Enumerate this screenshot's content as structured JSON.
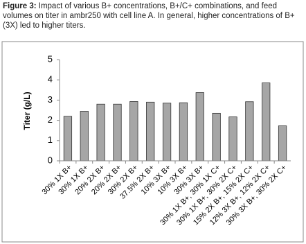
{
  "figure_label": "Figure 3:",
  "caption": "Impact of various B+ concentrations, B+/C+ combinations, and feed volumes on titer in ambr250 with cell line A. In general, higher concentrations of B+ (3X) led to higher titers.",
  "chart_data": {
    "type": "bar",
    "y_label": "Titer (g/L)",
    "categories": [
      "30% 1X B+",
      "30% 1X B+",
      "20% 2X B+",
      "20% 2X B+",
      "30% 2X B+",
      "37.5% 2X B+",
      "10% 3X B+",
      "10% 3X B+",
      "30% 3X B+",
      "30% 1X B+, 30% 1X C+",
      "30% 1X B+, 30% 2X C+",
      "15% 2X B+, 15% 2X C+",
      "12% 3X B+, 12% 2X C+",
      "30% 3X B+, 30% 2X C+"
    ],
    "values": [
      2.2,
      2.45,
      2.8,
      2.8,
      2.93,
      2.9,
      2.85,
      2.87,
      3.37,
      2.35,
      2.17,
      2.92,
      3.85,
      1.73
    ],
    "color": "#a6a6a6",
    "ylim": [
      0,
      5
    ],
    "yticks": [
      0,
      1,
      2,
      3,
      4,
      5
    ],
    "grid": false
  }
}
